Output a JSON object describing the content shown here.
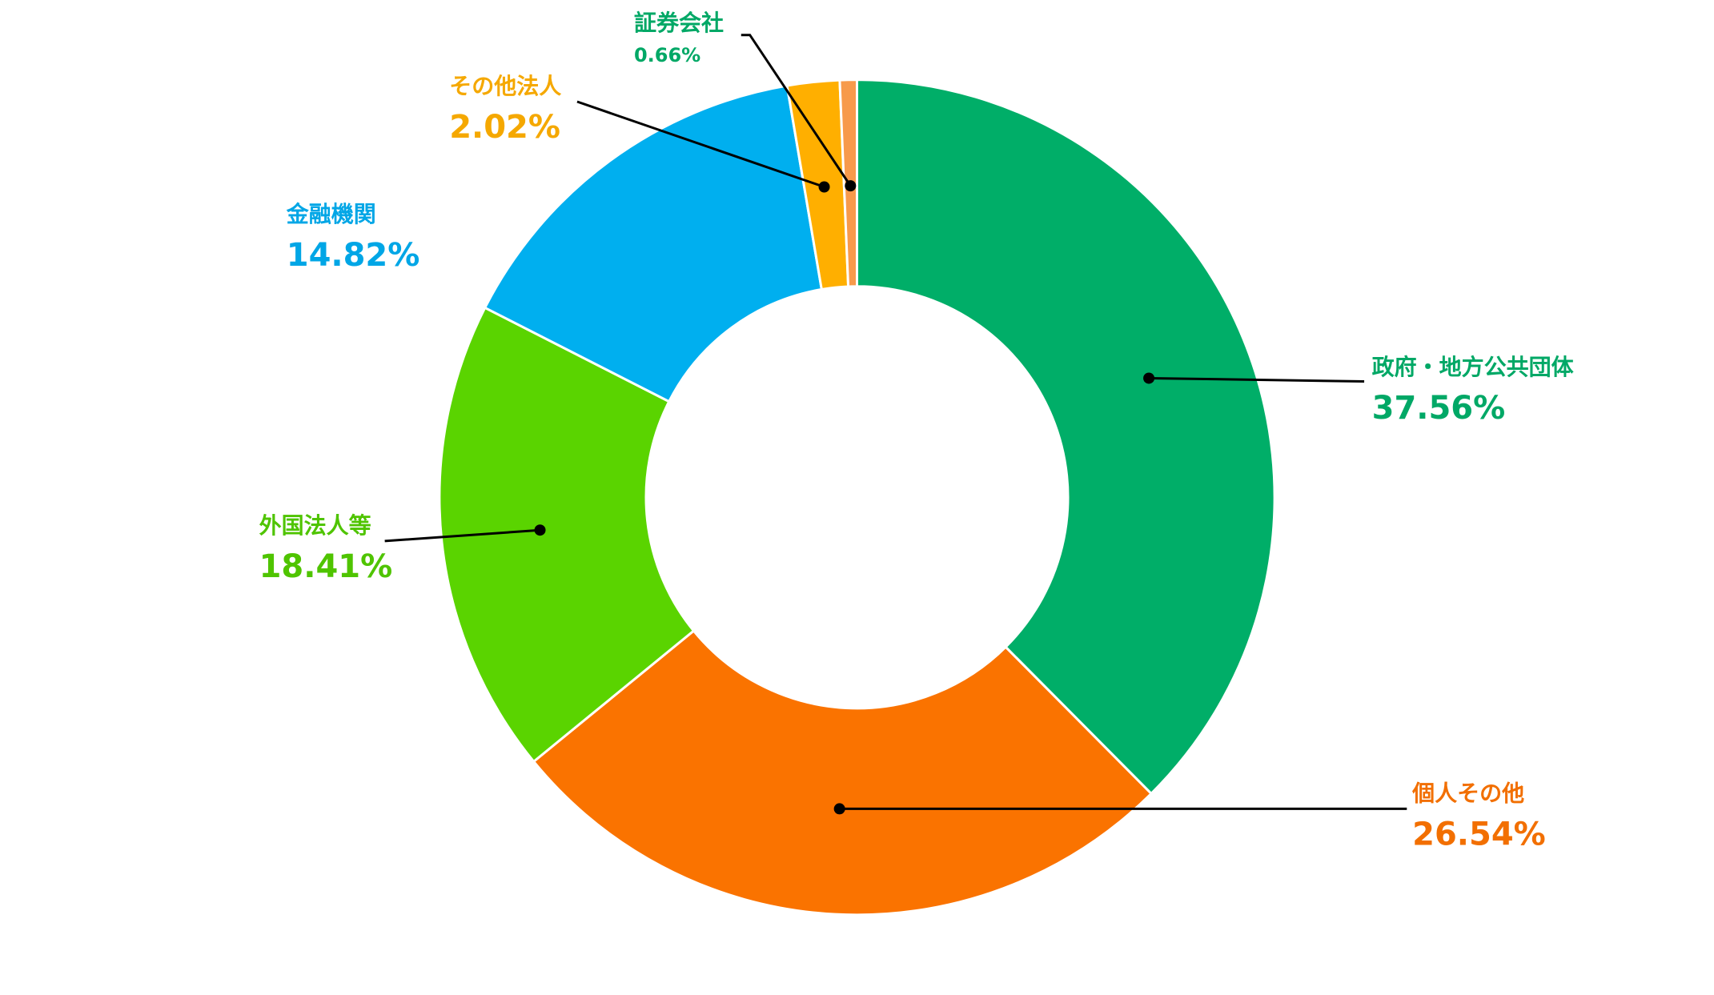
{
  "chart_data": {
    "type": "pie",
    "variant": "donut",
    "title": "",
    "start": "top, clockwise",
    "slices": [
      {
        "label": "政府・地方公共団体",
        "value": 37.56,
        "display": "37.56%",
        "color": "#00AE68",
        "label_color": "#00A866"
      },
      {
        "label": "個人その他",
        "value": 26.54,
        "display": "26.54%",
        "color": "#FA7300",
        "label_color": "#F26F00"
      },
      {
        "label": "外国法人等",
        "value": 18.41,
        "display": "18.41%",
        "color": "#5AD400",
        "label_color": "#4FC400"
      },
      {
        "label": "金融機関",
        "value": 14.82,
        "display": "14.82%",
        "color": "#00AFEF",
        "label_color": "#00A6E6"
      },
      {
        "label": "その他法人",
        "value": 2.02,
        "display": "2.02%",
        "color": "#FFAF00",
        "label_color": "#F5A800"
      },
      {
        "label": "証券会社",
        "value": 0.66,
        "display": "0.66%",
        "color": "#F79A4B",
        "label_color": "#00A866"
      }
    ],
    "legend": "none"
  }
}
